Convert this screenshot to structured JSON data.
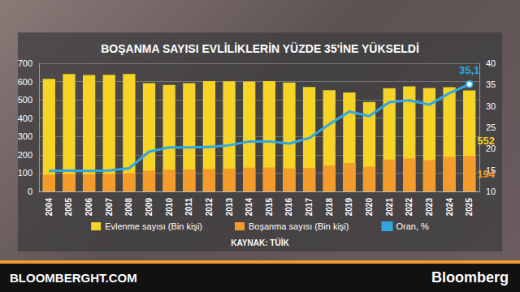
{
  "chart_data": {
    "type": "bar",
    "title": "BOŞANMA SAYISI EVLİLİKLERİN YÜZDE 35'İNE YÜKSELDİ",
    "source": "KAYNAK: TÜİK",
    "footer": {
      "left": "BLOOMBERGHT.COM",
      "right": "Bloomberg"
    },
    "categories": [
      "2004",
      "2005",
      "2006",
      "2007",
      "2008",
      "2009",
      "2010",
      "2011",
      "2012",
      "2013",
      "2014",
      "2015",
      "2016",
      "2017",
      "2018",
      "2019",
      "2020",
      "2021",
      "2022",
      "2023",
      "2024",
      "2025"
    ],
    "series": [
      {
        "name": "Evlenme sayısı (Bin kişi)",
        "type": "bar",
        "color": "#f5d327",
        "values": [
          615,
          641,
          636,
          637,
          641,
          592,
          582,
          592,
          603,
          601,
          600,
          603,
          595,
          570,
          553,
          541,
          489,
          564,
          574,
          565,
          569,
          552
        ],
        "value_labels": [
          null,
          null,
          null,
          null,
          null,
          null,
          null,
          null,
          null,
          null,
          null,
          null,
          null,
          null,
          null,
          null,
          null,
          null,
          null,
          null,
          null,
          "552"
        ]
      },
      {
        "name": "Boşanma sayısı (Bin kişi)",
        "type": "bar",
        "color": "#f39c2b",
        "values": [
          91,
          95,
          94,
          95,
          99,
          114,
          118,
          120,
          123,
          125,
          130,
          131,
          126,
          128,
          142,
          155,
          135,
          174,
          180,
          171,
          188,
          194
        ],
        "value_labels": [
          null,
          null,
          null,
          null,
          null,
          null,
          null,
          null,
          null,
          null,
          null,
          null,
          null,
          null,
          null,
          null,
          null,
          null,
          null,
          null,
          null,
          "194"
        ]
      },
      {
        "name": "Oran, %",
        "type": "line",
        "color": "#2fa8e0",
        "axis": "y2",
        "marker": "circle",
        "values": [
          14.8,
          14.9,
          14.8,
          14.9,
          15.4,
          19.3,
          20.3,
          20.3,
          20.4,
          20.8,
          21.7,
          21.7,
          21.2,
          22.5,
          25.7,
          28.7,
          27.6,
          30.9,
          31.3,
          30.3,
          33.0,
          35.1
        ],
        "value_labels": [
          null,
          null,
          null,
          null,
          null,
          null,
          null,
          null,
          null,
          null,
          null,
          null,
          null,
          null,
          null,
          null,
          null,
          null,
          null,
          null,
          null,
          "35,1"
        ]
      }
    ],
    "ylim": [
      0,
      700
    ],
    "yticks": [
      0,
      100,
      200,
      300,
      400,
      500,
      600,
      700
    ],
    "y2lim": [
      10,
      40
    ],
    "y2ticks": [
      10,
      15,
      20,
      25,
      30,
      35,
      40
    ],
    "grid": true,
    "legend": "bottom"
  }
}
